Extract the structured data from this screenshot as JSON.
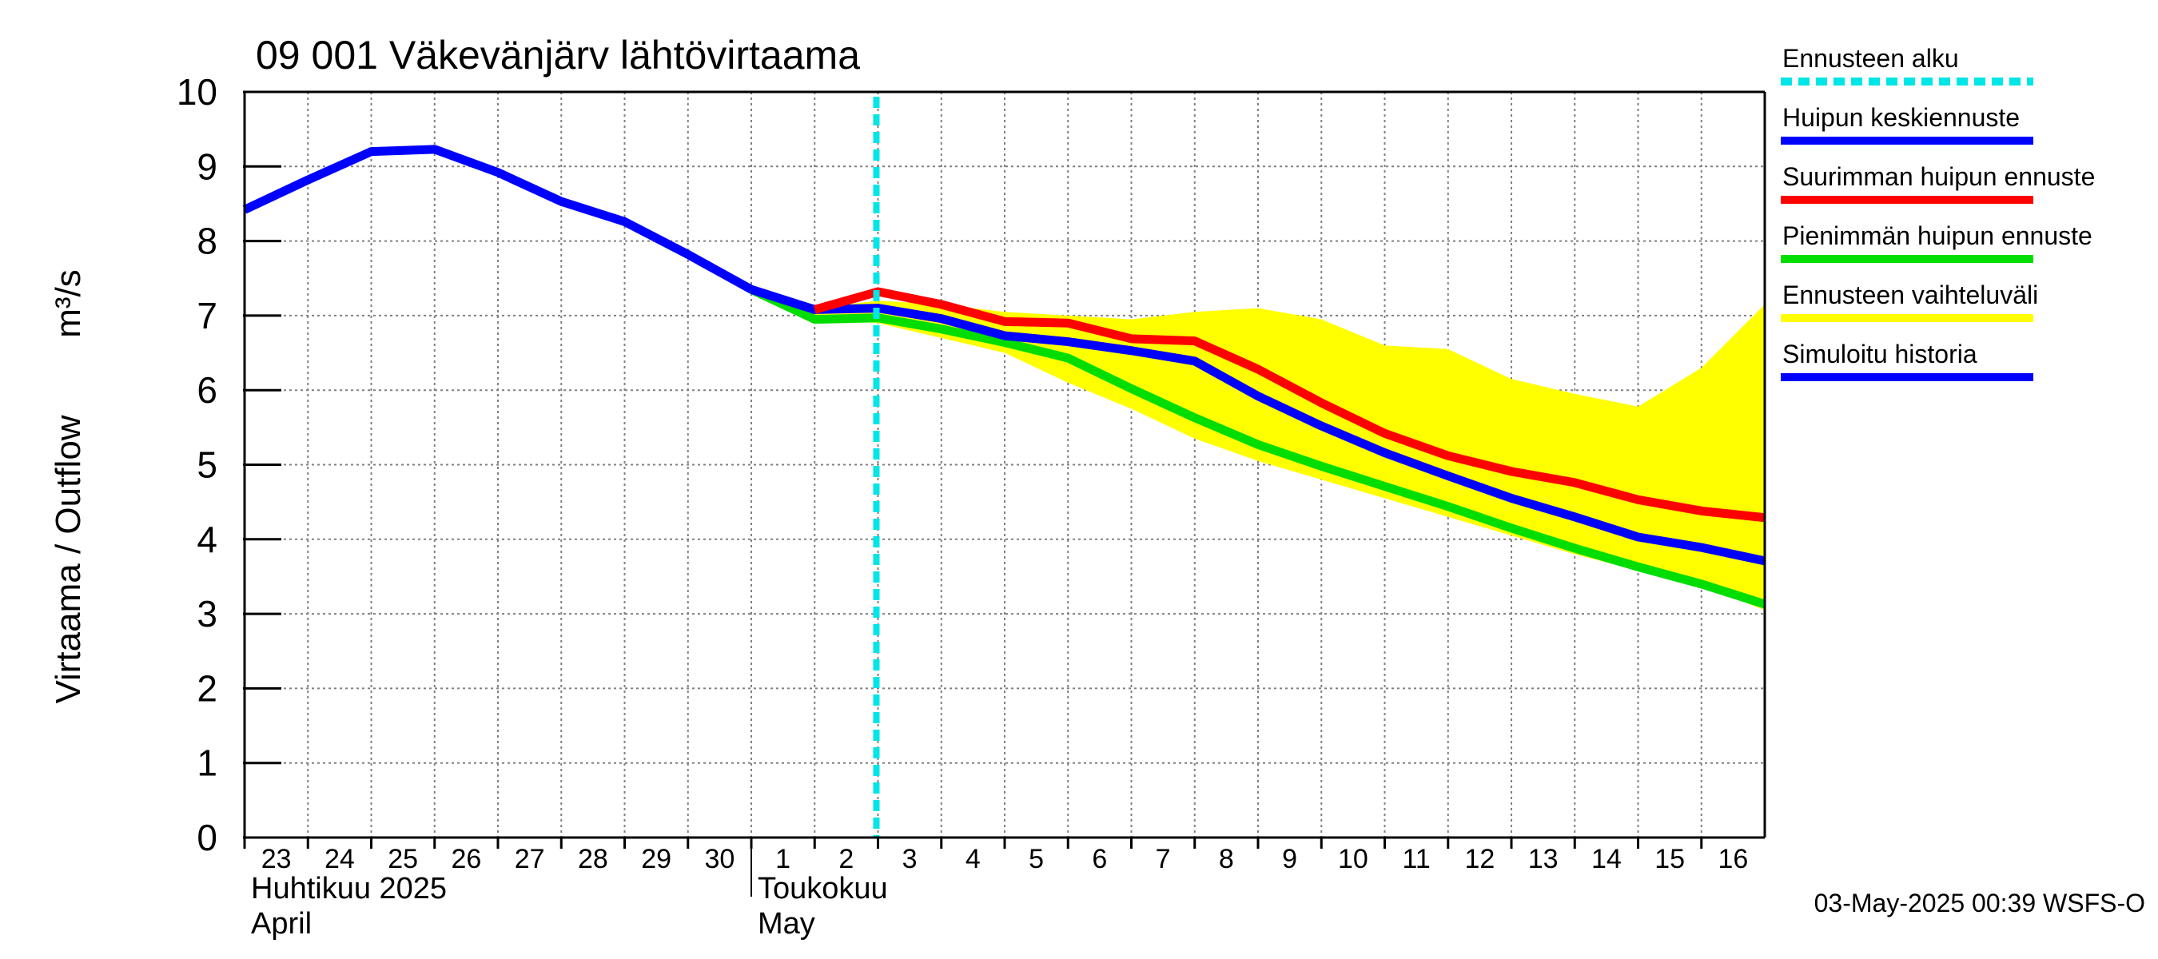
{
  "chart_data": {
    "type": "line",
    "title": "09 001 Väkevänjärv lähtövirtaama",
    "ylabel": "Virtaama / Outflow",
    "yunit": "m³/s",
    "ylim": [
      0,
      10
    ],
    "yticks": [
      0,
      1,
      2,
      3,
      4,
      5,
      6,
      7,
      8,
      9,
      10
    ],
    "xlim": [
      "2025-04-23",
      "2025-05-17"
    ],
    "x_tick_labels": [
      "23",
      "24",
      "25",
      "26",
      "27",
      "28",
      "29",
      "30",
      "1",
      "2",
      "3",
      "4",
      "5",
      "6",
      "7",
      "8",
      "9",
      "10",
      "11",
      "12",
      "13",
      "14",
      "15",
      "16"
    ],
    "month_labels": [
      {
        "fi": "Huhtikuu  2025",
        "en": "April",
        "start": "2025-04-23"
      },
      {
        "fi": "Toukokuu",
        "en": "May",
        "start": "2025-05-01"
      }
    ],
    "grid": true,
    "forecast_start": "2025-05-03",
    "legend": [
      {
        "label": "Ennusteen alku",
        "color": "#00e5e5",
        "style": "dashed"
      },
      {
        "label": "Huipun keskiennuste",
        "color": "#0000ff",
        "style": "solid"
      },
      {
        "label": "Suurimman huipun ennuste",
        "color": "#ff0000",
        "style": "solid"
      },
      {
        "label": "Pienimmän huipun ennuste",
        "color": "#00dd00",
        "style": "solid"
      },
      {
        "label": "Ennusteen vaihteluväli",
        "color": "#ffff00",
        "style": "solid"
      },
      {
        "label": "Simuloitu historia",
        "color": "#0000ff",
        "style": "solid"
      }
    ],
    "band": {
      "name": "Ennusteen vaihteluväli",
      "color": "#ffff00",
      "x": [
        "2025-05-01",
        "2025-05-02",
        "2025-05-03",
        "2025-05-04",
        "2025-05-05",
        "2025-05-06",
        "2025-05-07",
        "2025-05-08",
        "2025-05-09",
        "2025-05-10",
        "2025-05-11",
        "2025-05-12",
        "2025-05-13",
        "2025-05-14",
        "2025-05-15",
        "2025-05-16",
        "2025-05-17"
      ],
      "upper": [
        7.35,
        7.1,
        7.2,
        7.15,
        7.05,
        7.0,
        6.95,
        7.05,
        7.1,
        6.95,
        6.6,
        6.55,
        6.15,
        5.95,
        5.78,
        6.3,
        7.15
      ],
      "lower": [
        7.35,
        6.95,
        6.9,
        6.7,
        6.5,
        6.1,
        5.75,
        5.35,
        5.05,
        4.8,
        4.55,
        4.3,
        4.05,
        3.8,
        3.58,
        3.38,
        3.05
      ]
    },
    "series": [
      {
        "name": "Simuloitu historia",
        "color": "#0000ff",
        "x": [
          "2025-04-23",
          "2025-04-24",
          "2025-04-25",
          "2025-04-26",
          "2025-04-27",
          "2025-04-28",
          "2025-04-29",
          "2025-04-30",
          "2025-05-01",
          "2025-05-02"
        ],
        "y": [
          8.42,
          8.82,
          9.2,
          9.23,
          8.92,
          8.53,
          8.26,
          7.82,
          7.35,
          7.08
        ]
      },
      {
        "name": "Pienimmän huipun ennuste",
        "color": "#00dd00",
        "x": [
          "2025-05-01",
          "2025-05-02",
          "2025-05-03",
          "2025-05-04",
          "2025-05-05",
          "2025-05-06",
          "2025-05-07",
          "2025-05-08",
          "2025-05-09",
          "2025-05-10",
          "2025-05-11",
          "2025-05-12",
          "2025-05-13",
          "2025-05-14",
          "2025-05-15",
          "2025-05-16",
          "2025-05-17"
        ],
        "y": [
          7.35,
          6.95,
          6.97,
          6.82,
          6.64,
          6.43,
          6.02,
          5.63,
          5.27,
          4.98,
          4.71,
          4.44,
          4.15,
          3.88,
          3.63,
          3.4,
          3.13
        ]
      },
      {
        "name": "Huipun keskiennuste",
        "color": "#0000ff",
        "x": [
          "2025-05-01",
          "2025-05-02",
          "2025-05-03",
          "2025-05-04",
          "2025-05-05",
          "2025-05-06",
          "2025-05-07",
          "2025-05-08",
          "2025-05-09",
          "2025-05-10",
          "2025-05-11",
          "2025-05-12",
          "2025-05-13",
          "2025-05-14",
          "2025-05-15",
          "2025-05-16",
          "2025-05-17"
        ],
        "y": [
          7.35,
          7.08,
          7.1,
          6.96,
          6.73,
          6.65,
          6.53,
          6.39,
          5.92,
          5.52,
          5.16,
          4.85,
          4.55,
          4.3,
          4.03,
          3.89,
          3.71
        ]
      },
      {
        "name": "Suurimman huipun ennuste",
        "color": "#ff0000",
        "x": [
          "2025-05-02",
          "2025-05-03",
          "2025-05-04",
          "2025-05-05",
          "2025-05-06",
          "2025-05-07",
          "2025-05-08",
          "2025-05-09",
          "2025-05-10",
          "2025-05-11",
          "2025-05-12",
          "2025-05-13",
          "2025-05-14",
          "2025-05-15",
          "2025-05-16",
          "2025-05-17"
        ],
        "y": [
          7.08,
          7.32,
          7.15,
          6.92,
          6.9,
          6.69,
          6.66,
          6.28,
          5.83,
          5.42,
          5.12,
          4.91,
          4.76,
          4.53,
          4.38,
          4.29
        ]
      }
    ]
  },
  "footer": {
    "timestamp": "03-May-2025 00:39 WSFS-O"
  }
}
